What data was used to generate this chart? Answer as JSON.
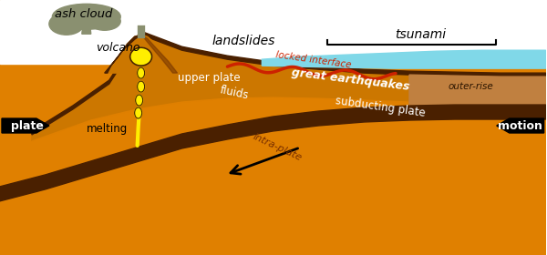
{
  "bg_color": "#ffffff",
  "colors": {
    "mantle_orange": "#E08000",
    "dark_brown": "#4A2000",
    "medium_brown": "#7A3800",
    "upper_plate_orange": "#CC7700",
    "ash_cloud": "#8A9070",
    "water": "#80D8E8",
    "yellow_magma": "#FFEE00",
    "locked_red": "#CC2200",
    "outer_rise_tan": "#C08040",
    "dark_olive": "#3A2800"
  },
  "labels": {
    "ash_cloud": "ash cloud",
    "volcano": "volcano",
    "upper_plate": "upper plate",
    "landslides": "landslides",
    "tsunami": "tsunami",
    "locked_interface": "locked interface",
    "great_earthquakes": "great earthquakes",
    "outer_rise": "outer-rise",
    "fluids": "fluids",
    "subducting_plate": "subducting plate",
    "intra_plate": "intra-plate",
    "melting": "melting",
    "plate_left": "plate",
    "motion_right": "motion"
  }
}
